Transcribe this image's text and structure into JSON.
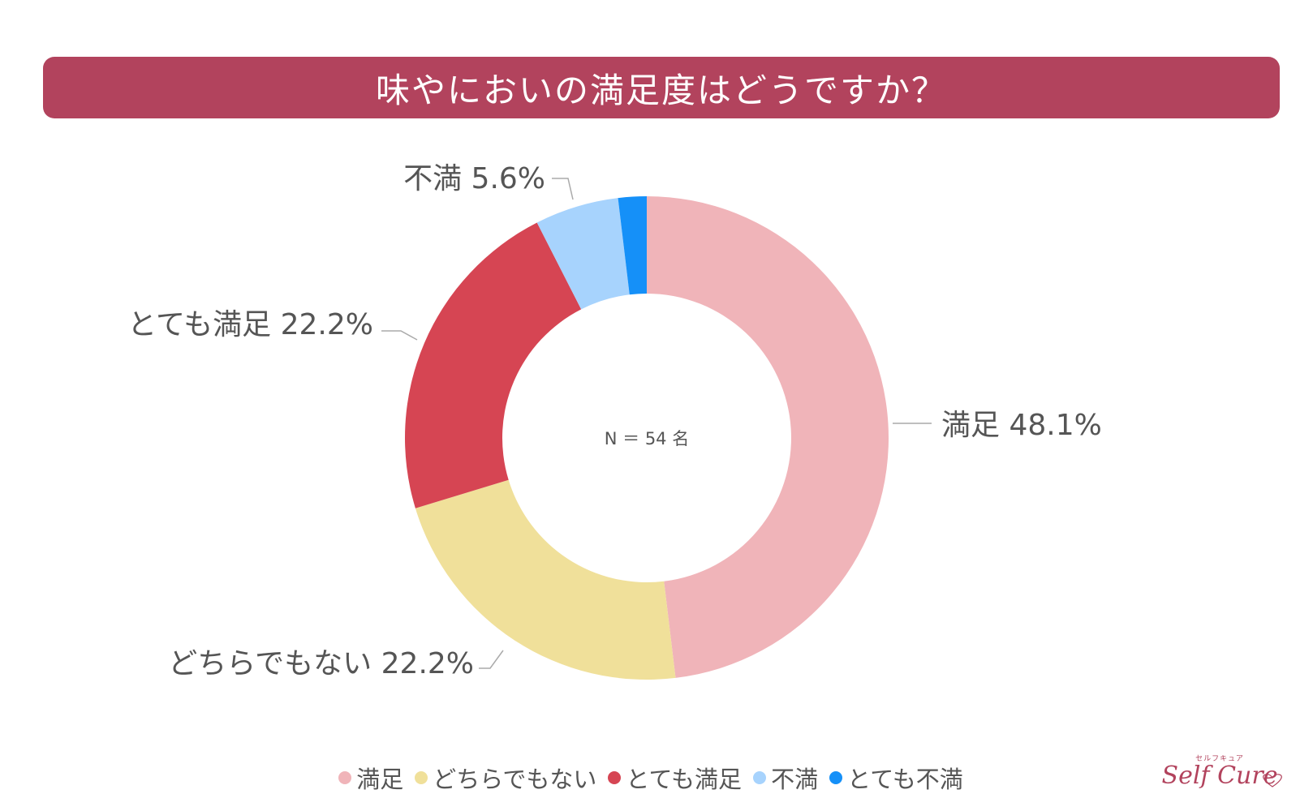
{
  "title": "味やにおいの満足度はどうですか？",
  "chart_data": {
    "type": "pie",
    "donut": true,
    "center_label": "N ＝ 54 名",
    "slices": [
      {
        "label": "満足",
        "value": 48.1,
        "display": "満足 48.1%",
        "color": "#f0b4b9"
      },
      {
        "label": "どちらでもない",
        "value": 22.2,
        "display": "どちらでもない 22.2%",
        "color": "#f0e09a"
      },
      {
        "label": "とても満足",
        "value": 22.2,
        "display": "とても満足 22.2%",
        "color": "#d64553"
      },
      {
        "label": "不満",
        "value": 5.6,
        "display": "不満 5.6%",
        "color": "#a7d3fd"
      },
      {
        "label": "とても不満",
        "value": 1.9,
        "display": "",
        "color": "#1590f8"
      }
    ],
    "legend": [
      "満足",
      "どちらでもない",
      "とても満足",
      "不満",
      "とても不満"
    ],
    "legend_position": "bottom"
  },
  "brand": {
    "kana": "セルフキュア",
    "name": "Self Cure"
  }
}
